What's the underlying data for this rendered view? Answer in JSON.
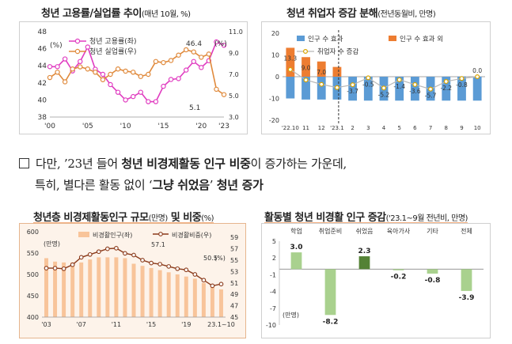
{
  "colors": {
    "pink": "#e03cc0",
    "orange": "#e08a3c",
    "blue": "#5b9bd5",
    "orange_bar": "#ed7d31",
    "peach_bar": "#f8c49a",
    "brown_line": "#8b3a1a",
    "light_green": "#a9d18e",
    "dark_green": "#548235"
  },
  "text": {
    "para_prefix": "다만, ’23년 들어 ",
    "para_bold1": "청년 비경제활동 인구 비중",
    "para_mid1": "이 증가하는 가운데,",
    "para_mid2": "특히, 별다른 활동 없이 ‘",
    "para_bold2": "그냥 쉬었음",
    "para_mid3": "’ ",
    "para_bold3": "청년 증가"
  },
  "panels": {
    "p1": {
      "title": "청년 고용률/실업률 추이",
      "subtitle": "(매년 10월, %)"
    },
    "p2": {
      "title": "청년 취업자 증감 분해",
      "subtitle": "(전년동월비, 만명)"
    },
    "p3": {
      "title_a": "청년층 비경제활동인구 규모",
      "title_b": "(만명)",
      "title_c": " 및 비중",
      "title_d": "(%)"
    },
    "p4": {
      "title": "활동별 청년 비경활 인구 증감",
      "subtitle": "('23.1~9월 전년비, 만명)"
    }
  },
  "chart_data": [
    {
      "type": "line",
      "x": [
        "'00",
        "'01",
        "'02",
        "'03",
        "'04",
        "'05",
        "'06",
        "'07",
        "'08",
        "'09",
        "'10",
        "'11",
        "'12",
        "'13",
        "'14",
        "'15",
        "'16",
        "'17",
        "'18",
        "'19",
        "'20",
        "'21",
        "'22",
        "'23"
      ],
      "xticks": [
        "'00",
        "'05",
        "'10",
        "'15",
        "'20",
        "'23"
      ],
      "series": [
        {
          "name": "청년 고용률(좌)",
          "axis": "left",
          "values": [
            43.9,
            43.9,
            44.8,
            43.4,
            44.5,
            46.2,
            43.6,
            43.0,
            41.8,
            40.9,
            40.0,
            40.4,
            40.9,
            39.8,
            39.8,
            41.6,
            42.4,
            42.5,
            43.5,
            44.5,
            43.8,
            44.6,
            46.8,
            46.4
          ]
        },
        {
          "name": "청년 실업률(우)",
          "axis": "right",
          "values": [
            6.7,
            7.2,
            6.3,
            7.5,
            7.7,
            7.5,
            7.2,
            6.5,
            7.0,
            7.5,
            7.3,
            7.2,
            6.8,
            7.0,
            8.2,
            8.1,
            8.3,
            8.8,
            9.3,
            9.1,
            8.6,
            8.9,
            5.6,
            5.1
          ]
        }
      ],
      "y_left": {
        "min": 38,
        "max": 48,
        "ticks": [
          38,
          40,
          42,
          44,
          46,
          48
        ]
      },
      "y_right": {
        "min": 3.0,
        "max": 11.0,
        "ticks": [
          "3.0",
          "5.0",
          "7.0",
          "9.0",
          "11.0"
        ]
      },
      "annotations": [
        "46.4",
        "5.1"
      ],
      "unit_labels": [
        "(%)",
        "(%)"
      ]
    },
    {
      "type": "bar",
      "categories": [
        "'22.10",
        "11",
        "12",
        "'23.1",
        "2",
        "3",
        "4",
        "5",
        "6",
        "7",
        "8",
        "9",
        "10"
      ],
      "xtick_labels": [
        "'22.10",
        "11",
        "12",
        "'23.1",
        "2",
        "3",
        "4",
        "5",
        "6",
        "7",
        "8",
        "9",
        "10"
      ],
      "series": [
        {
          "name": "인구 수 효과",
          "values": [
            -10,
            -10.5,
            -10.5,
            -10.5,
            -11,
            -11,
            -11,
            -11,
            -11,
            -11,
            -11,
            -11,
            -11
          ]
        },
        {
          "name": "인구 수 효과 외",
          "values": [
            13.3,
            9.0,
            7.0,
            4.5,
            0,
            0,
            0,
            0,
            0,
            0,
            0,
            0,
            0
          ]
        },
        {
          "name": "취업자 수 증감",
          "values": [
            3.3,
            -1.5,
            -3.5,
            -5.0,
            -3.7,
            -0.5,
            -5.2,
            -1.4,
            -3.6,
            -5.7,
            -2.2,
            -0.8,
            0.0
          ]
        }
      ],
      "value_labels": [
        "13.3",
        "9.0",
        "7.0",
        "",
        "-3.7",
        "-0.5",
        "-5.2",
        "-1.4",
        "-3.6",
        "-5.7",
        "-2.2",
        "-0.8",
        "0.0"
      ],
      "y": {
        "min": -20,
        "max": 20,
        "ticks": [
          20,
          10,
          0,
          -10,
          -20
        ]
      }
    },
    {
      "type": "bar",
      "x": [
        "'03",
        "'04",
        "'05",
        "'06",
        "'07",
        "'08",
        "'09",
        "'10",
        "'11",
        "'12",
        "'13",
        "'14",
        "'15",
        "'16",
        "'17",
        "'18",
        "'19",
        "'20",
        "'21",
        "'22",
        "'23.1~10"
      ],
      "xticks": [
        "'03",
        "'07",
        "'11",
        "'15",
        "'19",
        "23.1~10"
      ],
      "series": [
        {
          "name": "비경활인구(좌)",
          "axis": "left",
          "type": "bar",
          "values": [
            538,
            530,
            528,
            528,
            528,
            535,
            540,
            540,
            540,
            538,
            525,
            520,
            515,
            510,
            505,
            500,
            495,
            490,
            480,
            470,
            465
          ]
        },
        {
          "name": "비경활비중(우)",
          "axis": "right",
          "type": "line",
          "values": [
            53.6,
            53.6,
            53.5,
            54.2,
            55.5,
            56.0,
            56.5,
            57.0,
            57.1,
            56.2,
            55.9,
            55.0,
            54.5,
            54.3,
            53.9,
            53.5,
            53.3,
            52.5,
            51.5,
            50.5,
            50.8
          ]
        }
      ],
      "y_left": {
        "min": 400,
        "max": 600,
        "ticks": [
          400,
          450,
          500,
          550,
          600
        ],
        "unit": "(만명)"
      },
      "y_right": {
        "min": 45,
        "max": 60,
        "ticks": [
          45,
          47,
          49,
          51,
          53,
          55,
          57,
          59
        ]
      },
      "annotations": [
        "57.1",
        "50.5"
      ],
      "unit_right": "(%)"
    },
    {
      "type": "bar",
      "categories": [
        "학업",
        "취업준비",
        "쉬었음",
        "육아가사",
        "기타",
        "전체"
      ],
      "values": [
        3.0,
        -8.2,
        2.3,
        -0.2,
        -0.8,
        -3.9
      ],
      "value_labels": [
        "3.0",
        "-8.2",
        "2.3",
        "-0.2",
        "-0.8",
        "-3.9"
      ],
      "y": {
        "min": -10,
        "max": 5,
        "ticks": [
          5,
          2,
          -1,
          -4,
          -7,
          -10
        ]
      },
      "unit": "(만명)"
    }
  ]
}
